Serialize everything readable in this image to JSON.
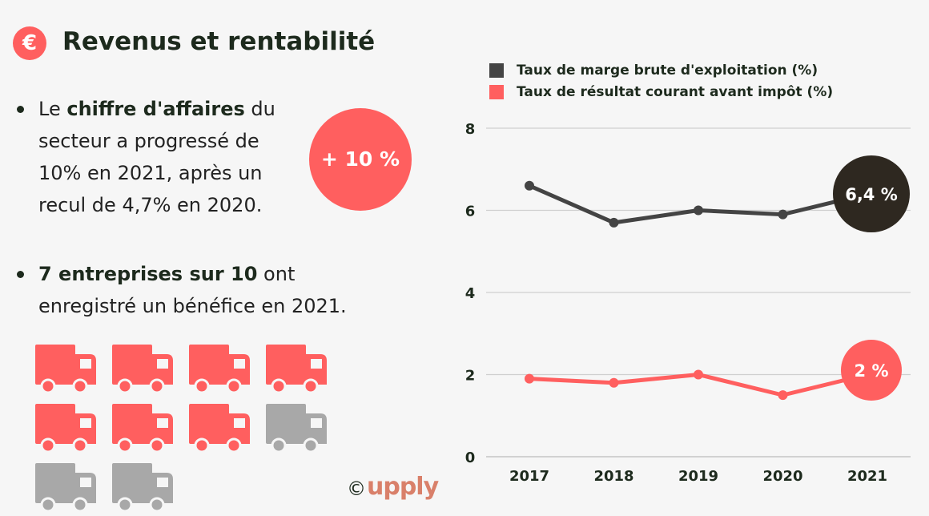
{
  "header": {
    "icon": "euro-icon",
    "icon_glyph": "€",
    "title": "Revenus et rentabilité"
  },
  "bullets": [
    {
      "pre": "Le ",
      "bold": "chiffre d'affaires",
      "post": " du secteur a progressé de 10% en 2021, après un recul de 4,7% en 2020."
    },
    {
      "pre": "",
      "bold": "7 entreprises sur 10",
      "post": " ont enregistré un bénéfice en 2021."
    }
  ],
  "growth_badge": "+ 10 %",
  "trucks": {
    "total": 10,
    "highlighted": 7,
    "highlight_color": "#ff5f5f",
    "other_color": "#a8a8a8"
  },
  "footer": {
    "copyright": "©",
    "logo": "upply"
  },
  "chart_data": {
    "type": "line",
    "x": [
      "2017",
      "2018",
      "2019",
      "2020",
      "2021"
    ],
    "ylim": [
      0,
      8
    ],
    "yticks": [
      0,
      2,
      4,
      6,
      8
    ],
    "grid": true,
    "legend": "top",
    "series": [
      {
        "name": "Taux de marge brute d'exploitation (%)",
        "color": "#444444",
        "values": [
          6.6,
          5.7,
          6.0,
          5.9,
          6.4
        ],
        "end_label": "6,4 %",
        "end_label_bg": "#2e2820"
      },
      {
        "name": "Taux de résultat courant avant impôt (%)",
        "color": "#ff5f5f",
        "values": [
          1.9,
          1.8,
          2.0,
          1.5,
          2.0
        ],
        "end_label": "2 %",
        "end_label_bg": "#ff5f5f"
      }
    ]
  }
}
